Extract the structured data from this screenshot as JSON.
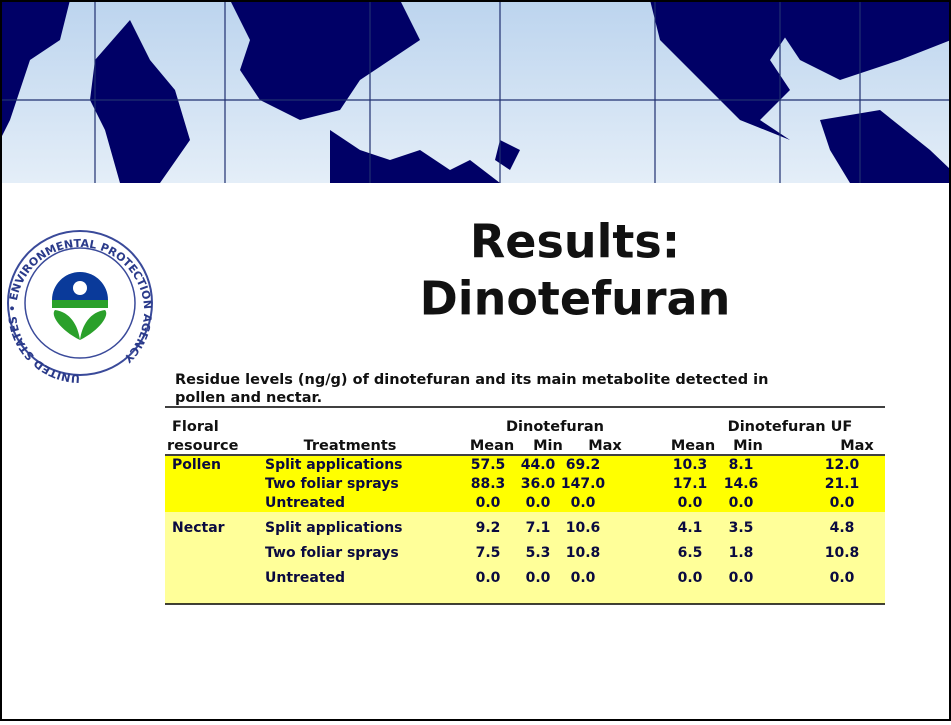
{
  "seal_text": "UNITED STATES • ENVIRONMENTAL PROTECTION AGENCY",
  "title": [
    "Results:",
    "Dinotefuran"
  ],
  "caption": [
    "Residue levels (ng/g) of dinotefuran and its main metabolite detected in",
    "pollen and nectar."
  ],
  "table": {
    "floral_header": [
      "Floral",
      "resource"
    ],
    "treatments_header": "Treatments",
    "group_headers": [
      "Dinotefuran",
      "Dinotefuran UF"
    ],
    "stat_headers": [
      "Mean",
      "Min",
      "Max",
      "Mean",
      "Min",
      "Max"
    ],
    "rows": [
      {
        "resource": "Pollen",
        "treatment": "Split applications",
        "values": [
          "57.5",
          "44.0",
          "69.2",
          "10.3",
          "8.1",
          "12.0"
        ]
      },
      {
        "treatment": "Two foliar sprays",
        "values": [
          "88.3",
          "36.0",
          "147.0",
          "17.1",
          "14.6",
          "21.1"
        ]
      },
      {
        "treatment": "Untreated",
        "values": [
          "0.0",
          "0.0",
          "0.0",
          "0.0",
          "0.0",
          "0.0"
        ]
      },
      {
        "resource": "Nectar",
        "treatment": "Split applications",
        "values": [
          "9.2",
          "7.1",
          "10.6",
          "4.1",
          "3.5",
          "4.8"
        ]
      },
      {
        "treatment": "Two foliar sprays",
        "values": [
          "7.5",
          "5.3",
          "10.8",
          "6.5",
          "1.8",
          "10.8"
        ]
      },
      {
        "treatment": "Untreated",
        "values": [
          "0.0",
          "0.0",
          "0.0",
          "0.0",
          "0.0",
          "0.0"
        ]
      }
    ]
  }
}
